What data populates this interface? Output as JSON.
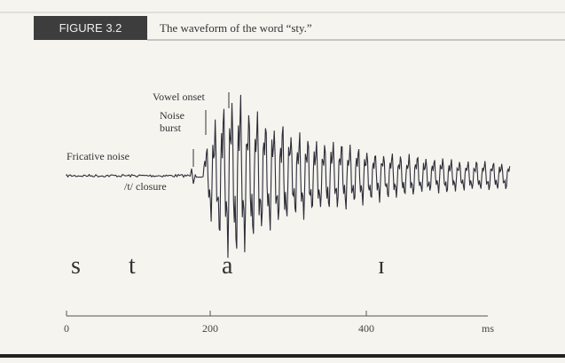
{
  "header": {
    "label": "FIGURE 3.2",
    "caption": "The waveform of the word “sty.”"
  },
  "annotations": {
    "vowel_onset": "Vowel onset",
    "noise_burst": [
      "Noise",
      "burst"
    ],
    "fricative_noise": "Fricative noise",
    "closure": "/t/ closure"
  },
  "segments": [
    "s",
    "t",
    "a",
    "ɪ"
  ],
  "time_axis": {
    "ticks": [
      "0",
      "200",
      "400"
    ],
    "unit": "ms"
  }
}
